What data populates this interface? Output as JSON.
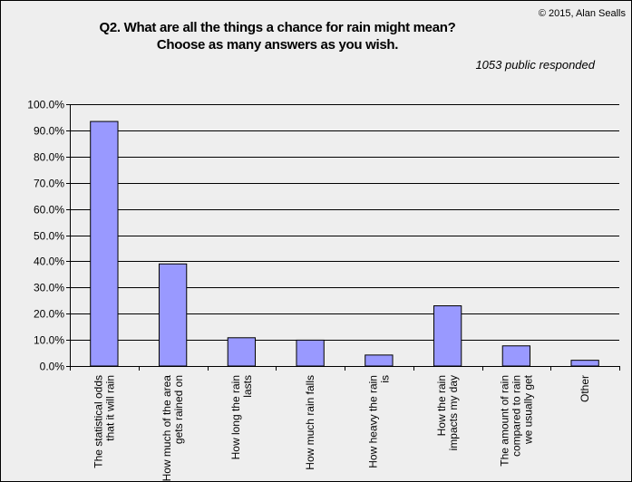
{
  "copyright": "© 2015, Alan Sealls",
  "respondents": "1053 public responded",
  "chart_data": {
    "type": "bar",
    "title": "Q2. What are all the things a chance for rain might mean?",
    "subtitle": "Choose as many answers as you wish.",
    "categories": [
      [
        "The statistical odds",
        "that it will rain"
      ],
      [
        "How much of the area",
        "gets rained on"
      ],
      [
        "How long the rain",
        "lasts"
      ],
      [
        "How much rain falls"
      ],
      [
        "How heavy the rain",
        "is"
      ],
      [
        "How the rain",
        "impacts my day"
      ],
      [
        "The amount of rain",
        "compared to rain",
        "we usually get"
      ],
      [
        "Other"
      ]
    ],
    "values": [
      93.4,
      39.0,
      10.8,
      9.9,
      4.2,
      23.0,
      7.7,
      2.2
    ],
    "yticks": [
      "0.0%",
      "10.0%",
      "20.0%",
      "30.0%",
      "40.0%",
      "50.0%",
      "60.0%",
      "70.0%",
      "80.0%",
      "90.0%",
      "100.0%"
    ],
    "ylim": [
      0,
      100
    ],
    "grid": true,
    "bar_color": "#9999ff",
    "xlabel": "",
    "ylabel": ""
  }
}
